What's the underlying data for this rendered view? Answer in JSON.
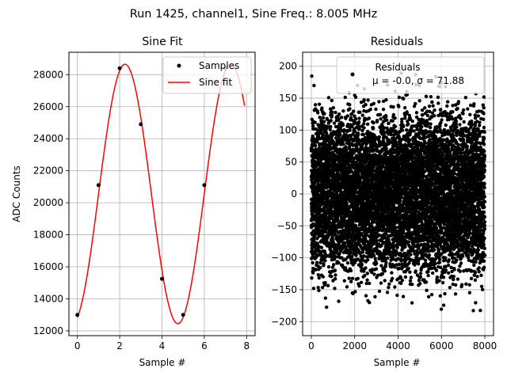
{
  "suptitle": "Run 1425, channel1, Sine Freq.: 8.005 MHz",
  "chart_data": [
    {
      "type": "scatter",
      "title": "Sine Fit",
      "xlabel": "Sample #",
      "ylabel": "ADC Counts",
      "xlim": [
        -0.4,
        8.4
      ],
      "ylim": [
        11700,
        29400
      ],
      "xticks": [
        0,
        2,
        4,
        6,
        8
      ],
      "yticks": [
        12000,
        14000,
        16000,
        18000,
        20000,
        22000,
        24000,
        26000,
        28000
      ],
      "grid": true,
      "legend_position": "top-right",
      "series": [
        {
          "name": "Samples",
          "type": "scatter",
          "color": "#000000",
          "x": [
            0,
            1,
            2,
            3,
            4,
            5,
            6,
            7
          ],
          "y": [
            13000,
            21100,
            28400,
            24900,
            15250,
            13000,
            21100,
            28400
          ]
        },
        {
          "name": "Sine fit",
          "type": "line",
          "color": "#ff0000",
          "model": {
            "offset": 20550,
            "amplitude": 8100,
            "period": 4.997,
            "peak_x": 2.25
          },
          "x_range": [
            0,
            7.9
          ]
        }
      ]
    },
    {
      "type": "scatter",
      "title": "Residuals",
      "xlabel": "Sample #",
      "ylabel": "",
      "xlim": [
        -400,
        8400
      ],
      "ylim": [
        -222,
        222
      ],
      "xticks": [
        0,
        2000,
        4000,
        6000,
        8000
      ],
      "yticks": [
        -200,
        -150,
        -100,
        -50,
        0,
        50,
        100,
        150,
        200
      ],
      "grid": true,
      "legend_position": "top-right",
      "series": [
        {
          "name": "Residuals",
          "stats": "μ = -0.0, σ = 71.88",
          "color": "#000000",
          "n_points": 8000,
          "mean": 0.0,
          "std": 71.88,
          "min": -210,
          "max": 190,
          "period_samples": 5
        }
      ]
    }
  ]
}
